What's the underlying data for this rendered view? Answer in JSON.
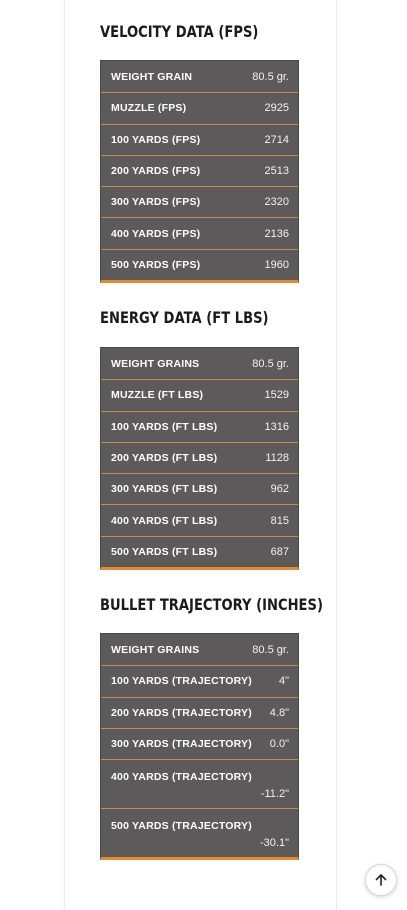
{
  "velocity": {
    "title": "VELOCITY DATA (FPS)",
    "rows": [
      {
        "label": "WEIGHT GRAIN",
        "value": "80.5 gr."
      },
      {
        "label": "MUZZLE (FPS)",
        "value": "2925"
      },
      {
        "label": "100 YARDS (FPS)",
        "value": "2714"
      },
      {
        "label": "200 YARDS (FPS)",
        "value": "2513"
      },
      {
        "label": "300 YARDS (FPS)",
        "value": "2320"
      },
      {
        "label": "400 YARDS (FPS)",
        "value": "2136"
      },
      {
        "label": "500 YARDS (FPS)",
        "value": "1960"
      }
    ]
  },
  "energy": {
    "title": "ENERGY DATA (FT LBS)",
    "rows": [
      {
        "label": "WEIGHT GRAINS",
        "value": "80.5 gr."
      },
      {
        "label": "MUZZLE (FT LBS)",
        "value": "1529"
      },
      {
        "label": "100 YARDS (FT LBS)",
        "value": "1316"
      },
      {
        "label": "200 YARDS (FT LBS)",
        "value": "1128"
      },
      {
        "label": "300 YARDS (FT LBS)",
        "value": "962"
      },
      {
        "label": "400 YARDS (FT LBS)",
        "value": "815"
      },
      {
        "label": "500 YARDS (FT LBS)",
        "value": "687"
      }
    ]
  },
  "trajectory": {
    "title": "BULLET TRAJECTORY (INCHES)",
    "rows": [
      {
        "label": "WEIGHT GRAINS",
        "value": "80.5 gr."
      },
      {
        "label": "100 YARDS (TRAJECTORY)",
        "value": "4\""
      },
      {
        "label": "200 YARDS (TRAJECTORY)",
        "value": "4.8\""
      },
      {
        "label": "300 YARDS (TRAJECTORY)",
        "value": "0.0\""
      },
      {
        "label": "400 YARDS (TRAJECTORY)",
        "value": "-11.2\""
      },
      {
        "label": "500 YARDS (TRAJECTORY)",
        "value": "-30.1\""
      }
    ]
  },
  "colors": {
    "table_bg": "#5c5a5b",
    "row_divider": "#c58d55",
    "accent": "#e58a2e",
    "title_text": "#1b1b1b"
  },
  "scroll_top": {
    "icon": "arrow-up-icon"
  }
}
